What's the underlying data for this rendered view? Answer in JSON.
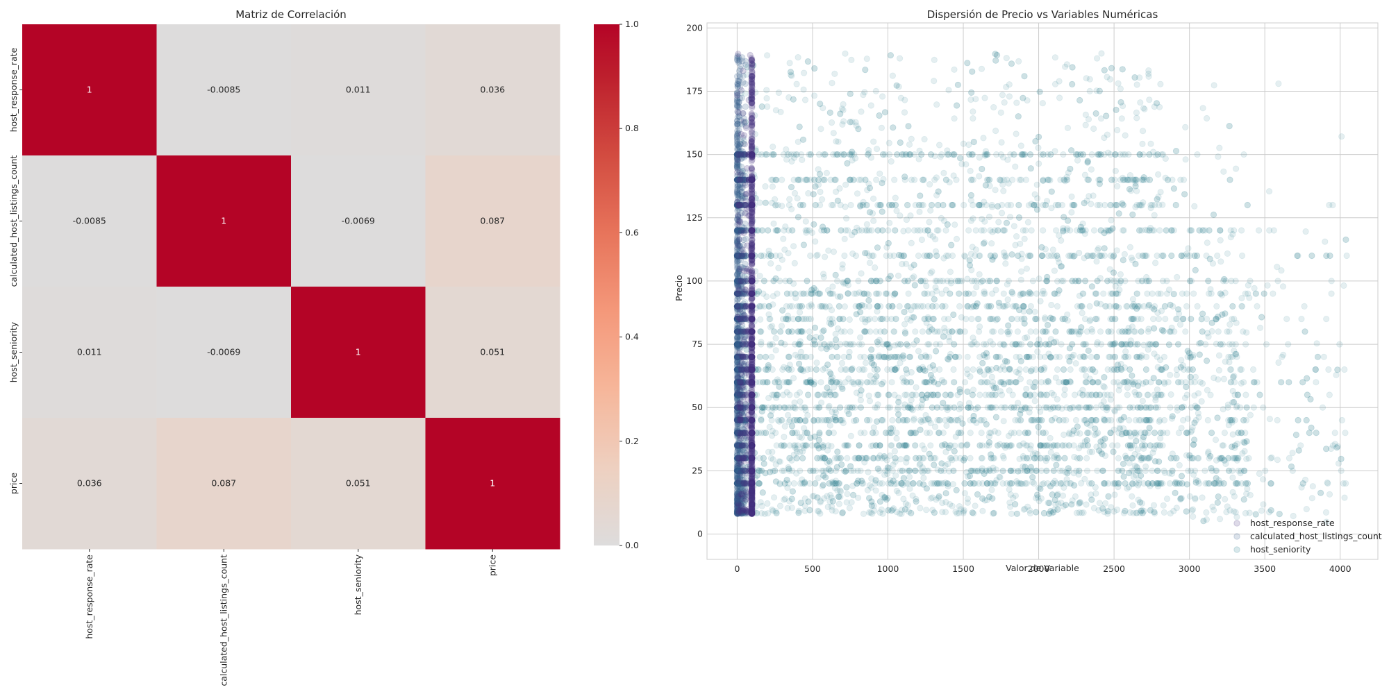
{
  "chart_data": [
    {
      "type": "heatmap",
      "title": "Matriz de Correlación",
      "row_labels": [
        "host_response_rate",
        "calculated_host_listings_count",
        "host_seniority",
        "price"
      ],
      "col_labels": [
        "host_response_rate",
        "calculated_host_listings_count",
        "host_seniority",
        "price"
      ],
      "values": [
        [
          1,
          -0.0085,
          0.011,
          0.036
        ],
        [
          -0.0085,
          1,
          -0.0069,
          0.087
        ],
        [
          0.011,
          -0.0069,
          1,
          0.051
        ],
        [
          0.036,
          0.087,
          0.051,
          1
        ]
      ],
      "cell_labels": [
        [
          "1",
          "-0.0085",
          "0.011",
          "0.036"
        ],
        [
          "-0.0085",
          "1",
          "-0.0069",
          "0.087"
        ],
        [
          "0.011",
          "-0.0069",
          "1",
          "0.051"
        ],
        [
          "0.036",
          "0.087",
          "0.051",
          "1"
        ]
      ],
      "colormap": "coolwarm (centered at 0)",
      "colorbar": {
        "range": [
          0.0,
          1.0
        ],
        "ticks": [
          0.0,
          0.2,
          0.4,
          0.6,
          0.8,
          1.0
        ],
        "tick_labels": [
          "0.0",
          "0.2",
          "0.4",
          "0.6",
          "0.8",
          "1.0"
        ]
      },
      "colors": {
        "high": "#b40426",
        "mid": "#dddcdc",
        "low": "#3b4cc0"
      }
    },
    {
      "type": "scatter",
      "title": "Dispersión de Precio vs Variables Numéricas",
      "xlabel": "Valor de Variable",
      "ylabel": "Precio",
      "xlim": [
        -200,
        4250
      ],
      "ylim": [
        -10,
        202
      ],
      "xticks": [
        0,
        500,
        1000,
        1500,
        2000,
        2500,
        3000,
        3500,
        4000
      ],
      "xtick_labels": [
        "0",
        "500",
        "1000",
        "1500",
        "2000",
        "2500",
        "3000",
        "3500",
        "4000"
      ],
      "yticks": [
        0,
        25,
        50,
        75,
        100,
        125,
        150,
        175,
        200
      ],
      "ytick_labels": [
        "0",
        "25",
        "50",
        "75",
        "100",
        "125",
        "150",
        "175",
        "200"
      ],
      "grid": true,
      "legend_position": "lower right",
      "alpha": 0.12,
      "series": [
        {
          "name": "host_response_rate",
          "color": "#46337e",
          "x_range": [
            0,
            100
          ],
          "x_concentrated": [
            95,
            100
          ],
          "y_range": [
            8,
            190
          ]
        },
        {
          "name": "calculated_host_listings_count",
          "color": "#365c8d",
          "x_range": [
            0,
            60
          ],
          "x_concentrated": [
            0,
            10
          ],
          "y_range": [
            8,
            190
          ]
        },
        {
          "name": "host_seniority",
          "color": "#277f8e",
          "x_range": [
            0,
            4050
          ],
          "x_concentrated": [
            0,
            2800
          ],
          "y_range": [
            1,
            190
          ],
          "common_prices": [
            20,
            25,
            30,
            35,
            40,
            45,
            50,
            55,
            60,
            65,
            70,
            75,
            80,
            85,
            90,
            95,
            100,
            110,
            120,
            130,
            140,
            150
          ]
        }
      ]
    }
  ]
}
